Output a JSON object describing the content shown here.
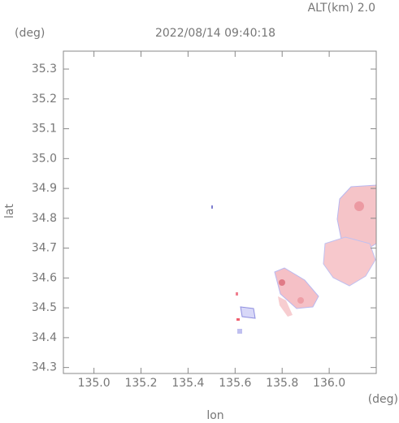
{
  "chart_data": {
    "type": "map",
    "title": "2022/08/14 09:40:18",
    "subtitle": "ALT(km) 2.0",
    "y_unit": "(deg)",
    "x_unit": "(deg)",
    "x_label": "lon",
    "y_label": "lat",
    "xlim": [
      134.87,
      136.2
    ],
    "ylim": [
      34.28,
      35.36
    ],
    "xticks": [
      {
        "value": 135,
        "label": "135.0"
      },
      135.2,
      135.4,
      135.6,
      135.8,
      {
        "value": 136,
        "label": "136.0"
      }
    ],
    "yticks": [
      34.3,
      34.4,
      34.5,
      34.6,
      34.7,
      34.8,
      34.9,
      {
        "value": 35,
        "label": "35.0"
      },
      35.1,
      35.2,
      35.3
    ]
  }
}
